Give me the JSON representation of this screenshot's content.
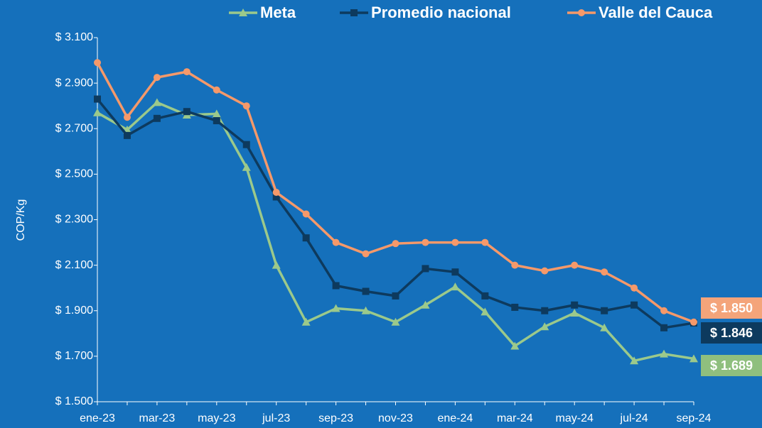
{
  "chart_data": {
    "type": "line",
    "y_label": "COP/Kg",
    "categories": [
      "ene-23",
      null,
      "mar-23",
      null,
      "may-23",
      null,
      "jul-23",
      null,
      "sep-23",
      null,
      "nov-23",
      null,
      "ene-24",
      null,
      "mar-24",
      null,
      "may-24",
      null,
      "jul-24",
      null,
      "sep-24"
    ],
    "ylim": [
      1500,
      3100
    ],
    "yticks": [
      {
        "value": 1500,
        "label": "$ 1.500"
      },
      {
        "value": 1700,
        "label": "$ 1.700"
      },
      {
        "value": 1900,
        "label": "$ 1.900"
      },
      {
        "value": 2100,
        "label": "$ 2.100"
      },
      {
        "value": 2300,
        "label": "$ 2.300"
      },
      {
        "value": 2500,
        "label": "$ 2.500"
      },
      {
        "value": 2700,
        "label": "$ 2.700"
      },
      {
        "value": 2900,
        "label": "$ 2.900"
      },
      {
        "value": 3100,
        "label": "$ 3.100"
      }
    ],
    "grid": false,
    "legend": "top",
    "series": [
      {
        "name": "Meta",
        "color": "#9bc98b",
        "label_color": "#8fbf7e",
        "marker": "triangle",
        "values": [
          2770,
          2695,
          2815,
          2760,
          2765,
          2530,
          2100,
          1850,
          1910,
          1900,
          1850,
          1925,
          2005,
          1895,
          1745,
          1830,
          1890,
          1825,
          1680,
          1710,
          1689
        ],
        "end_label": "$ 1.689"
      },
      {
        "name": "Promedio nacional",
        "color": "#0d3a5e",
        "label_color": "#0d3a5e",
        "marker": "square",
        "values": [
          2830,
          2670,
          2745,
          2775,
          2735,
          2630,
          2400,
          2220,
          2010,
          1985,
          1965,
          2085,
          2070,
          1965,
          1915,
          1900,
          1925,
          1900,
          1925,
          1825,
          1846
        ],
        "end_label": "$ 1.846"
      },
      {
        "name": "Valle del Cauca",
        "color": "#f5996a",
        "label_color": "#f4a47a",
        "marker": "circle",
        "values": [
          2990,
          2750,
          2925,
          2950,
          2870,
          2800,
          2420,
          2325,
          2200,
          2150,
          2195,
          2200,
          2200,
          2200,
          2100,
          2075,
          2100,
          2070,
          2000,
          1900,
          1850
        ],
        "end_label": "$ 1.850"
      }
    ]
  }
}
